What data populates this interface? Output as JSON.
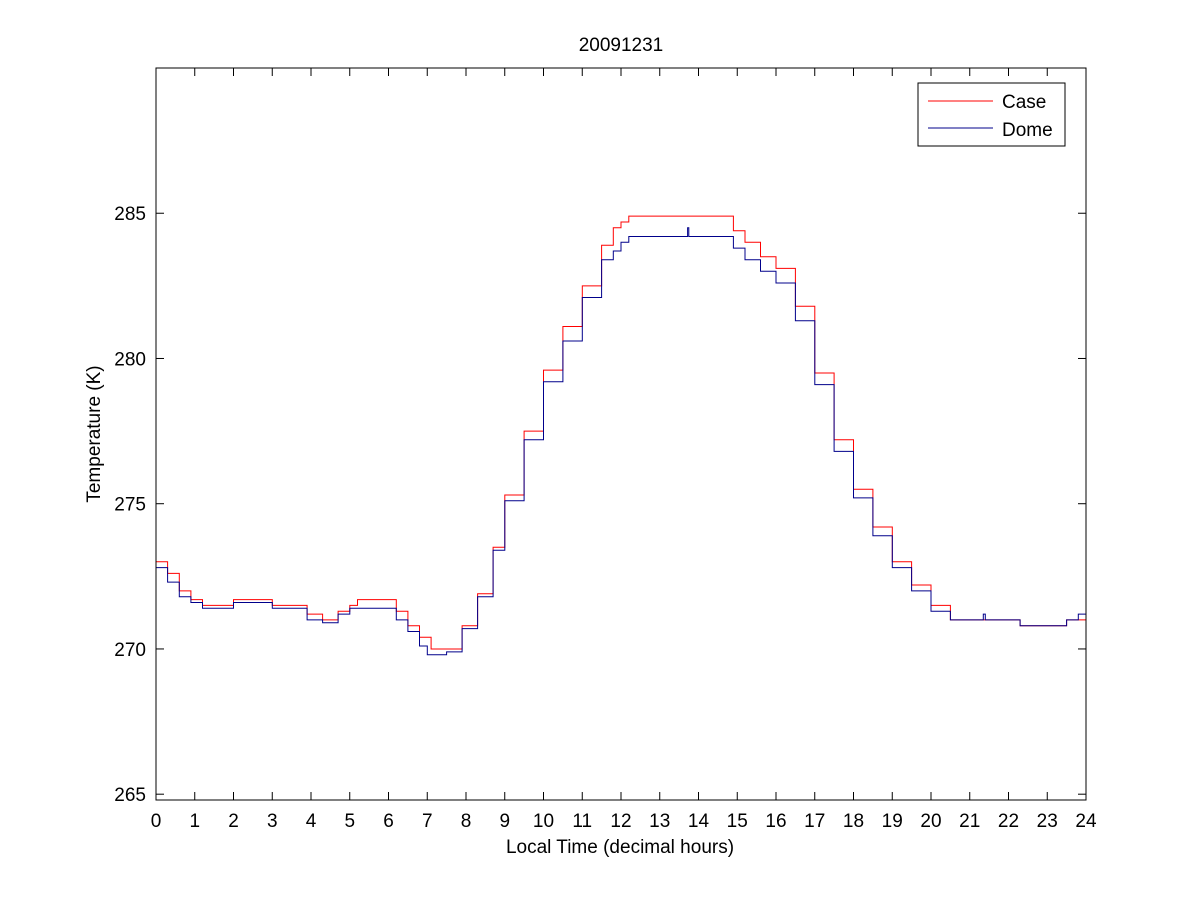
{
  "chart_data": {
    "type": "line",
    "title": "20091231",
    "xlabel": "Local Time (decimal hours)",
    "ylabel": "Temperature (K)",
    "xlim": [
      0,
      24
    ],
    "ylim": [
      264.8,
      290
    ],
    "xticks": [
      0,
      1,
      2,
      3,
      4,
      5,
      6,
      7,
      8,
      9,
      10,
      11,
      12,
      13,
      14,
      15,
      16,
      17,
      18,
      19,
      20,
      21,
      22,
      23,
      24
    ],
    "yticks": [
      265,
      270,
      275,
      280,
      285
    ],
    "grid": false,
    "legend_position": "top-right",
    "series": [
      {
        "name": "Case",
        "color": "#ff0000",
        "points": [
          [
            0,
            273.0
          ],
          [
            0.3,
            272.6
          ],
          [
            0.6,
            272.0
          ],
          [
            0.9,
            271.7
          ],
          [
            1.2,
            271.5
          ],
          [
            1.8,
            271.5
          ],
          [
            2.0,
            271.7
          ],
          [
            2.6,
            271.7
          ],
          [
            3.0,
            271.5
          ],
          [
            3.6,
            271.5
          ],
          [
            3.9,
            271.2
          ],
          [
            4.3,
            271.0
          ],
          [
            4.7,
            271.3
          ],
          [
            5.0,
            271.5
          ],
          [
            5.2,
            271.7
          ],
          [
            5.8,
            271.7
          ],
          [
            6.2,
            271.3
          ],
          [
            6.5,
            270.8
          ],
          [
            6.8,
            270.4
          ],
          [
            7.1,
            270.0
          ],
          [
            7.5,
            270.0
          ],
          [
            7.9,
            270.8
          ],
          [
            8.3,
            271.9
          ],
          [
            8.7,
            273.5
          ],
          [
            9.0,
            275.3
          ],
          [
            9.5,
            277.5
          ],
          [
            10.0,
            279.6
          ],
          [
            10.5,
            281.1
          ],
          [
            11.0,
            282.5
          ],
          [
            11.5,
            283.9
          ],
          [
            11.8,
            284.5
          ],
          [
            12.0,
            284.7
          ],
          [
            12.2,
            284.9
          ],
          [
            13.0,
            284.9
          ],
          [
            14.0,
            284.9
          ],
          [
            14.6,
            284.9
          ],
          [
            14.9,
            284.4
          ],
          [
            15.2,
            284.0
          ],
          [
            15.6,
            283.5
          ],
          [
            16.0,
            283.1
          ],
          [
            16.5,
            281.8
          ],
          [
            17.0,
            279.5
          ],
          [
            17.5,
            277.2
          ],
          [
            18.0,
            275.5
          ],
          [
            18.5,
            274.2
          ],
          [
            19.0,
            273.0
          ],
          [
            19.5,
            272.2
          ],
          [
            20.0,
            271.5
          ],
          [
            20.5,
            271.0
          ],
          [
            21.0,
            271.0
          ],
          [
            22.0,
            271.0
          ],
          [
            22.3,
            270.8
          ],
          [
            23.0,
            270.8
          ],
          [
            23.5,
            271.0
          ],
          [
            24.0,
            271.0
          ]
        ]
      },
      {
        "name": "Dome",
        "color": "#00008b",
        "points": [
          [
            0,
            272.8
          ],
          [
            0.3,
            272.3
          ],
          [
            0.6,
            271.8
          ],
          [
            0.9,
            271.6
          ],
          [
            1.2,
            271.4
          ],
          [
            1.8,
            271.4
          ],
          [
            2.0,
            271.6
          ],
          [
            2.6,
            271.6
          ],
          [
            3.0,
            271.4
          ],
          [
            3.6,
            271.4
          ],
          [
            3.9,
            271.0
          ],
          [
            4.3,
            270.9
          ],
          [
            4.7,
            271.2
          ],
          [
            5.0,
            271.4
          ],
          [
            5.8,
            271.4
          ],
          [
            6.2,
            271.0
          ],
          [
            6.5,
            270.6
          ],
          [
            6.8,
            270.1
          ],
          [
            7.0,
            269.8
          ],
          [
            7.5,
            269.9
          ],
          [
            7.9,
            270.7
          ],
          [
            8.3,
            271.8
          ],
          [
            8.7,
            273.4
          ],
          [
            9.0,
            275.1
          ],
          [
            9.5,
            277.2
          ],
          [
            10.0,
            279.2
          ],
          [
            10.5,
            280.6
          ],
          [
            11.0,
            282.1
          ],
          [
            11.5,
            283.4
          ],
          [
            11.8,
            283.7
          ],
          [
            12.0,
            284.0
          ],
          [
            12.2,
            284.2
          ],
          [
            13.0,
            284.2
          ],
          [
            13.7,
            284.2
          ],
          [
            13.72,
            284.5
          ],
          [
            13.75,
            284.2
          ],
          [
            14.6,
            284.2
          ],
          [
            14.9,
            283.8
          ],
          [
            15.2,
            283.4
          ],
          [
            15.6,
            283.0
          ],
          [
            16.0,
            282.6
          ],
          [
            16.5,
            281.3
          ],
          [
            17.0,
            279.1
          ],
          [
            17.5,
            276.8
          ],
          [
            18.0,
            275.2
          ],
          [
            18.5,
            273.9
          ],
          [
            19.0,
            272.8
          ],
          [
            19.5,
            272.0
          ],
          [
            20.0,
            271.3
          ],
          [
            20.5,
            271.0
          ],
          [
            21.3,
            271.0
          ],
          [
            21.35,
            271.2
          ],
          [
            21.4,
            271.0
          ],
          [
            22.0,
            271.0
          ],
          [
            22.3,
            270.8
          ],
          [
            23.0,
            270.8
          ],
          [
            23.5,
            271.0
          ],
          [
            23.8,
            271.2
          ],
          [
            24.0,
            271.2
          ]
        ]
      }
    ]
  }
}
